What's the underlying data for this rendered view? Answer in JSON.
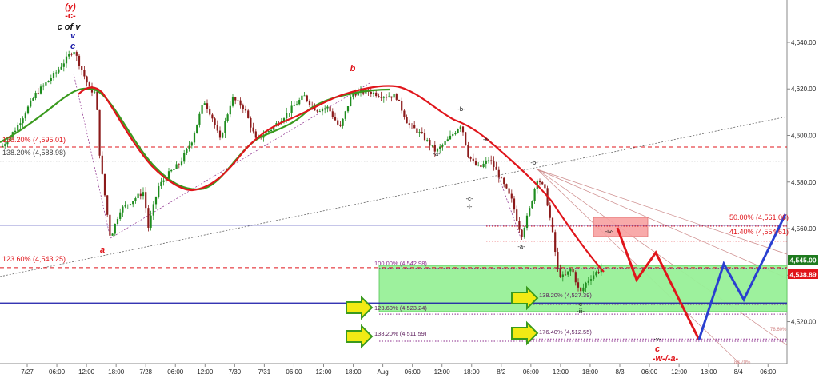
{
  "chart_data": {
    "type": "candlestick",
    "x_labels": [
      "7/27",
      "06:00",
      "12:00",
      "18:00",
      "7/28",
      "06:00",
      "12:00",
      "7/30",
      "7/31",
      "06:00",
      "12:00",
      "18:00",
      "Aug",
      "06:00",
      "12:00",
      "18:00",
      "8/2",
      "06:00",
      "12:00",
      "18:00",
      "8/3",
      "06:00",
      "12:00",
      "18:00",
      "8/4",
      "06:00"
    ],
    "y_ticks": [
      "4,640.00",
      "4,620.00",
      "4,600.00",
      "4,580.00",
      "4,560.00",
      "4,540.00",
      "4,520.00"
    ],
    "ylim": [
      4502,
      4652
    ],
    "grid": false,
    "price_badges": [
      {
        "value": "4,545.00",
        "color": "#1e7a1e"
      },
      {
        "value": "4,538.89",
        "color": "#e0151b"
      }
    ],
    "horizontal_levels": [
      {
        "label": "138.20% (4,595.01)",
        "value": 4595.01,
        "color": "#e0151b",
        "style": "dashed"
      },
      {
        "label": "138.20% (4,588.98)",
        "value": 4588.98,
        "color": "#666666",
        "style": "dotted"
      },
      {
        "label": "",
        "value": 4561.5,
        "color": "#1a1aa8",
        "style": "solid"
      },
      {
        "label": "123.60% (4,543.25)",
        "value": 4543.25,
        "color": "#e0151b",
        "style": "dashed"
      },
      {
        "label": "",
        "value": 4528,
        "color": "#1a1aa8",
        "style": "solid"
      },
      {
        "label": "50.00% (4,561.06)",
        "value": 4561.06,
        "color": "#e0151b",
        "style": "dotted"
      },
      {
        "label": "41.40% (4,554.61)",
        "value": 4554.61,
        "color": "#e0151b",
        "style": "dotted"
      },
      {
        "label": "100.00% (4,542.98)",
        "value": 4542.98,
        "color": "#8b2b8b",
        "style": "dotted"
      },
      {
        "label": "138.20% (4,527.39)",
        "value": 4527.39,
        "color": "#8b2b8b",
        "style": "dotted"
      },
      {
        "label": "123.60% (4,523.24)",
        "value": 4523.24,
        "color": "#8b2b8b",
        "style": "dotted"
      },
      {
        "label": "176.40% (4,512.55)",
        "value": 4512.55,
        "color": "#8b2b8b",
        "style": "dotted"
      },
      {
        "label": "138.20% (4,511.59)",
        "value": 4511.59,
        "color": "#8b2b8b",
        "style": "dotted"
      }
    ],
    "fib_fan_labels": [
      {
        "label": "78.60%",
        "value": 4516.5
      },
      {
        "label": "88.70%",
        "value": 4504.5
      }
    ],
    "wave_labels": [
      {
        "text": "(y)",
        "color": "#e0151b",
        "italic": true
      },
      {
        "text": "-c-",
        "color": "#e0151b",
        "italic": false
      },
      {
        "text": "c of v",
        "color": "#111111",
        "italic": true
      },
      {
        "text": "v",
        "color": "#1a1aa8",
        "italic": true
      },
      {
        "text": "c",
        "color": "#1a1aa8",
        "italic": true
      },
      {
        "text": "a",
        "color": "#e0151b",
        "italic": true
      },
      {
        "text": "b",
        "color": "#e0151b",
        "italic": true
      },
      {
        "text": "-b-",
        "color": "#111111",
        "italic": false
      },
      {
        "text": "-a-",
        "color": "#111111",
        "italic": false
      },
      {
        "text": "-ii-",
        "color": "#111111",
        "italic": false
      },
      {
        "text": "-c-",
        "color": "#111111",
        "italic": false
      },
      {
        "text": "-i-",
        "color": "#111111",
        "italic": false
      },
      {
        "text": "-b-",
        "color": "#111111",
        "italic": false
      },
      {
        "text": "-a-",
        "color": "#111111",
        "italic": false
      },
      {
        "text": "-iv-",
        "color": "#111111",
        "italic": false
      },
      {
        "text": "-c-",
        "color": "#111111",
        "italic": false
      },
      {
        "text": "-iii-",
        "color": "#111111",
        "italic": false
      },
      {
        "text": "-v-",
        "color": "#111111",
        "italic": false
      },
      {
        "text": "c",
        "color": "#e0151b",
        "italic": true
      },
      {
        "text": "-w-/-a-",
        "color": "#e0151b",
        "italic": true
      }
    ],
    "projection_red": [
      {
        "x": "8/2 22:00",
        "y": 4555
      },
      {
        "x": "8/3 02:00",
        "y": 4539
      },
      {
        "x": "8/3 05:00",
        "y": 4548
      },
      {
        "x": "8/3 12:00",
        "y": 4512
      }
    ],
    "projection_blue": [
      {
        "x": "8/3 12:00",
        "y": 4512
      },
      {
        "x": "8/3 16:00",
        "y": 4543
      },
      {
        "x": "8/3 20:00",
        "y": 4528
      },
      {
        "x": "8/4 06:00",
        "y": 4562
      }
    ],
    "target_zone": {
      "from": 4523.24,
      "to": 4542.98,
      "color": "#98f098"
    },
    "iv_zone": {
      "from": 4555,
      "to": 4561,
      "color": "#f7a1a1"
    },
    "colors": {
      "ma_red": "#e0151b",
      "ma_green": "#3a9a1e",
      "up_candle": "#1e8c1e",
      "down_candle": "#8b1a1a"
    }
  }
}
